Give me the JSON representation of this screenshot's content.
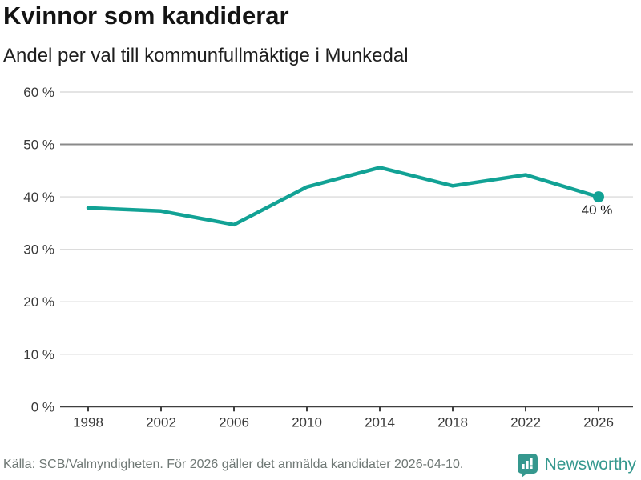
{
  "header": {
    "title": "Kvinnor som kandiderar",
    "subtitle": "Andel per val till kommunfullmäktige i Munkedal"
  },
  "chart_data": {
    "type": "line",
    "title": "Kvinnor som kandiderar",
    "subtitle": "Andel per val till kommunfullmäktige i Munkedal",
    "categories": [
      "1998",
      "2002",
      "2006",
      "2010",
      "2014",
      "2018",
      "2022",
      "2026"
    ],
    "values": [
      37.9,
      37.3,
      34.7,
      41.9,
      45.6,
      42.1,
      44.2,
      40.0
    ],
    "unit": "%",
    "ylim": [
      0,
      60
    ],
    "y_ticks": [
      0,
      10,
      20,
      30,
      40,
      50,
      60
    ],
    "y_tick_labels": [
      "0 %",
      "10 %",
      "20 %",
      "30 %",
      "40 %",
      "50 %",
      "60 %"
    ],
    "reference_line": 50,
    "grid": true,
    "legend": "none",
    "end_point_label": "40 %",
    "colors": {
      "line": "#12a295",
      "grid": "#dcdcdc",
      "reference": "#8a8a8a",
      "axis": "#3f3f3f",
      "tick_label": "#3a3a3a",
      "end_label": "#1f1f1f"
    }
  },
  "footer": {
    "source": "Källa: SCB/Valmyndigheten. För 2026 gäller det anmälda kandidater 2026-04-10.",
    "brand": "Newsworthy",
    "brand_color": "#35988e"
  }
}
